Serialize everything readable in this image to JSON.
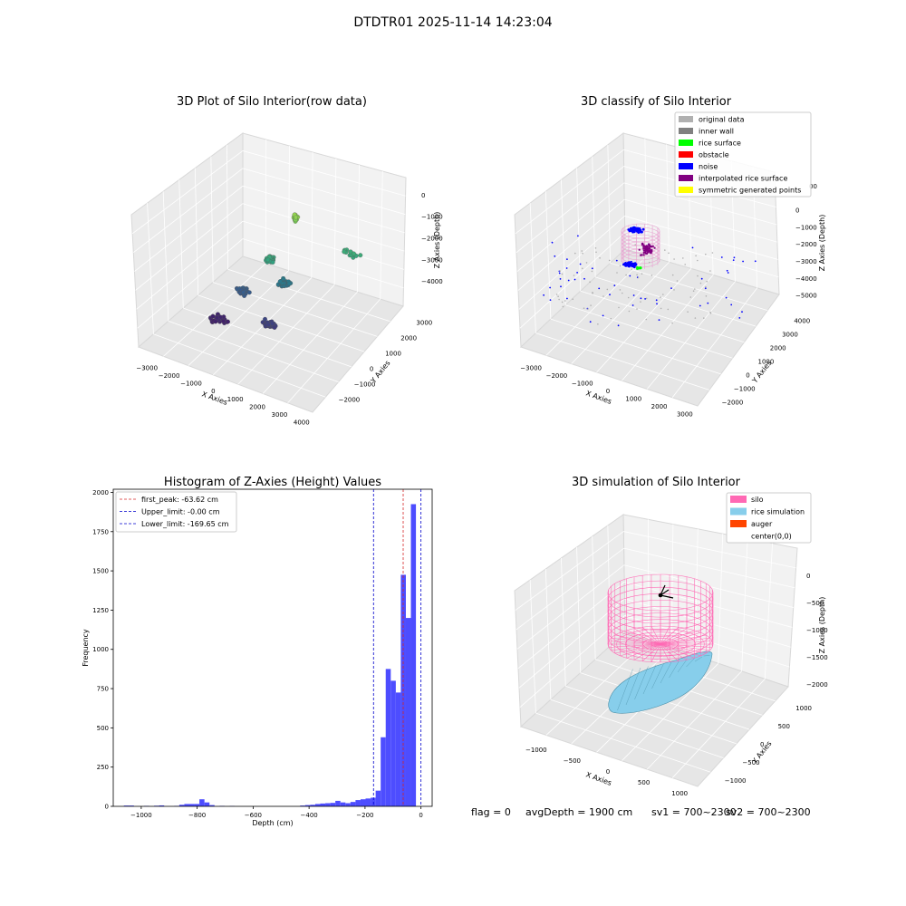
{
  "figure": {
    "suptitle": "DTDTR01 2025-11-14 14:23:04",
    "footer": {
      "flag": "flag = 0",
      "avg_depth": "avgDepth = 1900 cm",
      "sv1": "sv1 = 700~2300",
      "sv2": "sv2 = 700~2300"
    }
  },
  "colors": {
    "hist_bar": "#4d4dff",
    "first_peak_line": "#d62728",
    "limit_line": "#0000cc",
    "silo": "#ff69b4",
    "rice": "#87ceeb",
    "auger": "#ff4500",
    "pane": "#f2f2f2"
  },
  "chart_data": [
    {
      "type": "scatter",
      "subtype": "3d",
      "title": "3D Plot of Silo Interior(row data)",
      "xlabel": "X Axies",
      "ylabel": "Y Axies",
      "zlabel": "Z Axies (Depth)",
      "x_ticks": [
        "−3000",
        "−2000",
        "−1000",
        "0",
        "1000",
        "2000",
        "3000",
        "4000"
      ],
      "y_ticks": [
        "−2000",
        "−1000",
        "0",
        "1000",
        "2000",
        "3000"
      ],
      "z_ticks": [
        "0",
        "−1000",
        "−2000",
        "−3000",
        "−4000"
      ],
      "xlim": [
        -3500,
        4300
      ],
      "ylim": [
        -2500,
        3600
      ],
      "zlim": [
        -4700,
        300
      ],
      "colormap": "viridis",
      "clusters": [
        {
          "x": 300,
          "y": 1700,
          "z": -800,
          "n": 30,
          "spread": 120
        },
        {
          "x": 0,
          "y": 600,
          "z": -1900,
          "n": 40,
          "spread": 250
        },
        {
          "x": 500,
          "y": 800,
          "z": -2800,
          "n": 45,
          "spread": 300
        },
        {
          "x": -1000,
          "y": 300,
          "z": -3300,
          "n": 35,
          "spread": 400
        },
        {
          "x": 600,
          "y": -200,
          "z": -3800,
          "n": 45,
          "spread": 350
        },
        {
          "x": -1500,
          "y": -400,
          "z": -4200,
          "n": 40,
          "spread": 500
        },
        {
          "x": 2500,
          "y": 2200,
          "z": -1800,
          "n": 14,
          "spread": 500
        }
      ]
    },
    {
      "type": "scatter",
      "subtype": "3d",
      "title": "3D classify of Silo Interior",
      "xlabel": "X Axies",
      "ylabel": "Y Axies",
      "zlabel": "Z Axies (Depth)",
      "x_ticks": [
        "−3000",
        "−2000",
        "−1000",
        "0",
        "1000",
        "2000",
        "3000"
      ],
      "y_ticks": [
        "−2000",
        "−1000",
        "0",
        "1000",
        "2000",
        "3000",
        "4000"
      ],
      "z_ticks": [
        "0",
        "−1000",
        "−2000",
        "−3000",
        "−4000",
        "−5000"
      ],
      "partial_tick": "00",
      "xlim": [
        -3300,
        3700
      ],
      "ylim": [
        -2500,
        4200
      ],
      "zlim": [
        -5600,
        300
      ],
      "legend": [
        {
          "label": "original data",
          "color": "#b0b0b0"
        },
        {
          "label": "inner wall",
          "color": "#808080"
        },
        {
          "label": "rice surface",
          "color": "#00ff00"
        },
        {
          "label": "obstacle",
          "color": "#ff0000"
        },
        {
          "label": "noise",
          "color": "#0000ff"
        },
        {
          "label": "interpolated rice surface",
          "color": "#800080"
        },
        {
          "label": "symmetric generated points",
          "color": "#ffff00"
        }
      ]
    },
    {
      "type": "bar",
      "subtype": "histogram",
      "title": "Histogram of Z-Axies (Height) Values",
      "xlabel": "Depth (cm)",
      "ylabel": "Frequency",
      "xlim": [
        -1100,
        40
      ],
      "ylim": [
        0,
        2020
      ],
      "x_ticks": [
        -1000,
        -800,
        -600,
        -400,
        -200,
        0
      ],
      "y_ticks": [
        0,
        250,
        500,
        750,
        1000,
        1250,
        1500,
        1750,
        2000
      ],
      "bin_width": 18,
      "bins": [
        {
          "x": -1062,
          "count": 5
        },
        {
          "x": -1044,
          "count": 5
        },
        {
          "x": -990,
          "count": 3
        },
        {
          "x": -954,
          "count": 4
        },
        {
          "x": -936,
          "count": 6
        },
        {
          "x": -882,
          "count": 3
        },
        {
          "x": -864,
          "count": 10
        },
        {
          "x": -846,
          "count": 15
        },
        {
          "x": -828,
          "count": 15
        },
        {
          "x": -810,
          "count": 15
        },
        {
          "x": -792,
          "count": 45
        },
        {
          "x": -774,
          "count": 25
        },
        {
          "x": -756,
          "count": 8
        },
        {
          "x": -720,
          "count": 3
        },
        {
          "x": -684,
          "count": 2
        },
        {
          "x": -432,
          "count": 5
        },
        {
          "x": -414,
          "count": 8
        },
        {
          "x": -396,
          "count": 10
        },
        {
          "x": -378,
          "count": 15
        },
        {
          "x": -360,
          "count": 18
        },
        {
          "x": -342,
          "count": 20
        },
        {
          "x": -324,
          "count": 22
        },
        {
          "x": -306,
          "count": 35
        },
        {
          "x": -288,
          "count": 25
        },
        {
          "x": -270,
          "count": 20
        },
        {
          "x": -252,
          "count": 28
        },
        {
          "x": -234,
          "count": 40
        },
        {
          "x": -216,
          "count": 45
        },
        {
          "x": -198,
          "count": 50
        },
        {
          "x": -180,
          "count": 55
        },
        {
          "x": -162,
          "count": 100
        },
        {
          "x": -144,
          "count": 440
        },
        {
          "x": -126,
          "count": 875
        },
        {
          "x": -108,
          "count": 800
        },
        {
          "x": -90,
          "count": 725
        },
        {
          "x": -72,
          "count": 1475
        },
        {
          "x": -54,
          "count": 1200
        },
        {
          "x": -36,
          "count": 1925
        }
      ],
      "vlines": [
        {
          "label": "first_peak: -63.62 cm",
          "x": -63.62,
          "color": "#d62728"
        },
        {
          "label": "Upper_limit: -0.00 cm",
          "x": 0,
          "color": "#0000cc"
        },
        {
          "label": "Lower_limit: -169.65 cm",
          "x": -169.65,
          "color": "#0000cc"
        }
      ]
    },
    {
      "type": "scatter",
      "subtype": "3d-surface",
      "title": "3D simulation of Silo Interior",
      "xlabel": "X Axies",
      "ylabel": "Y Axies",
      "zlabel": "Z Axies (Depth)",
      "x_ticks": [
        "−1000",
        "−500",
        "0",
        "500",
        "1000"
      ],
      "y_ticks": [
        "−1000",
        "−500",
        "0",
        "500",
        "1000"
      ],
      "z_ticks": [
        "0",
        "−500",
        "−1000",
        "−1500",
        "−2000"
      ],
      "legend": [
        {
          "label": "silo",
          "color": "#ff69b4"
        },
        {
          "label": "rice simulation",
          "color": "#87ceeb"
        },
        {
          "label": "auger",
          "color": "#ff4500"
        },
        {
          "label": "center(0,0)",
          "color": ""
        }
      ]
    }
  ]
}
